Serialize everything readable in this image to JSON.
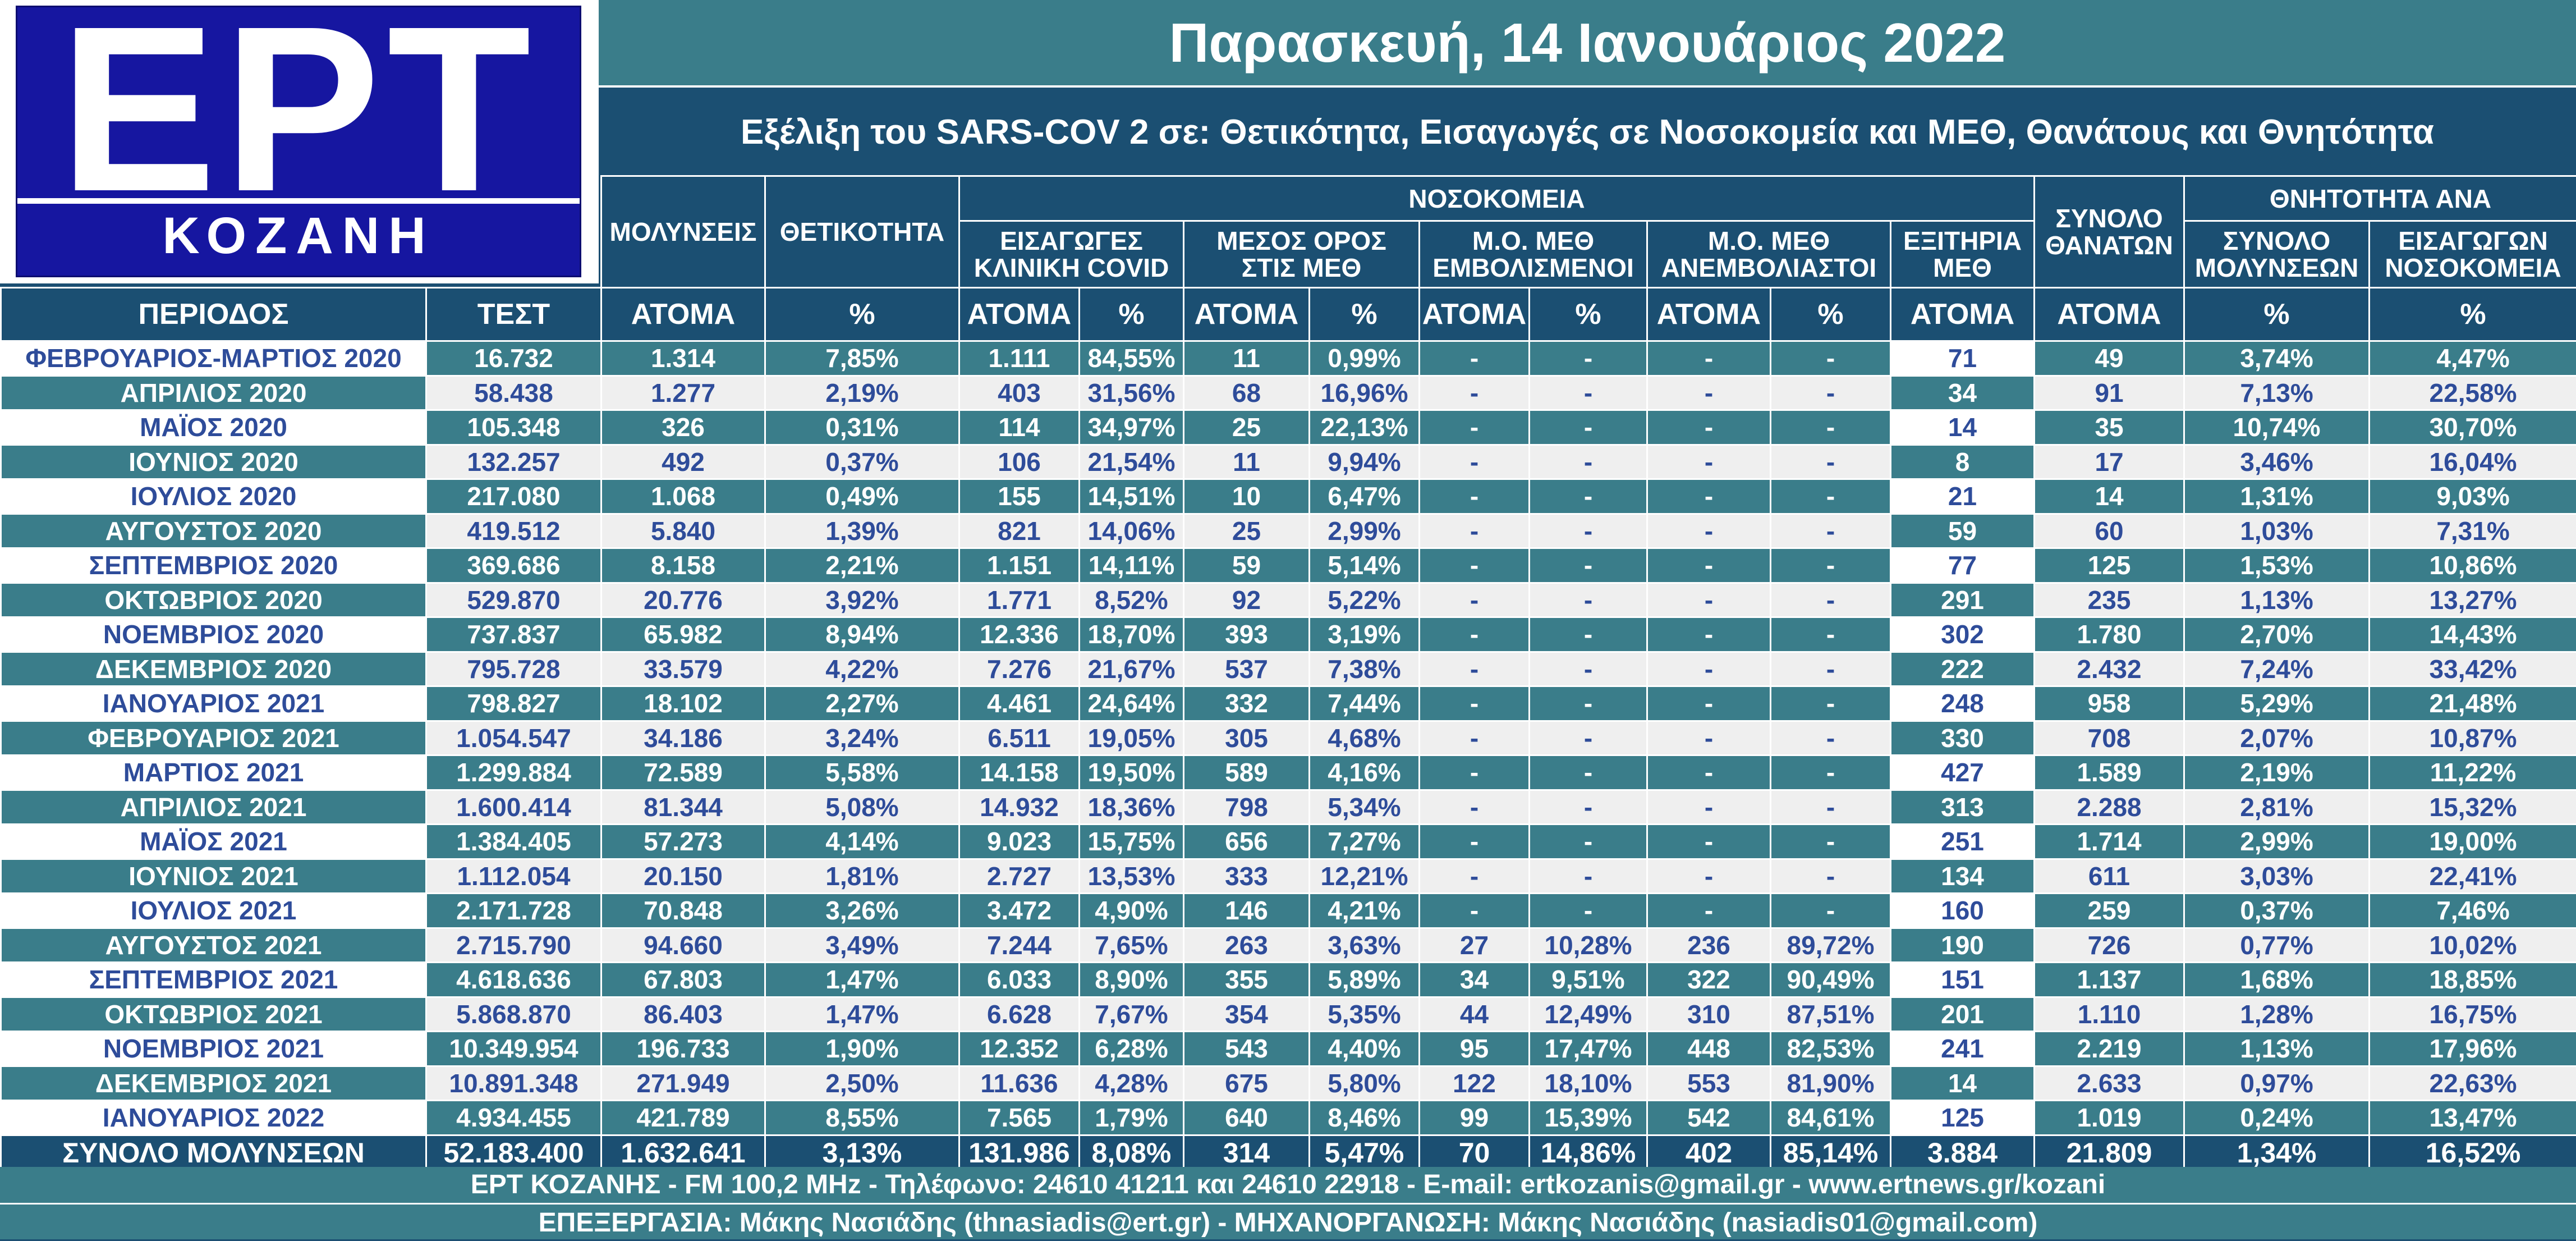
{
  "logo": {
    "brand": "ΕΡΤ",
    "city": "ΚΟΖΑΝΗ"
  },
  "header": {
    "date": "Παρασκευή, 14 Ιανουάριος 2022",
    "subtitle": "Εξέλιξη του SARS-COV 2 σε: Θετικότητα, Εισαγωγές σε Νοσοκομεία και ΜΕΘ, Θανάτους και Θνητότητα"
  },
  "columns": {
    "hospitals_group": "ΝΟΣΟΚΟΜΕΙΑ",
    "mortality_group": "ΘΝΗΤΟΤΗΤΑ ΑΝΑ",
    "infections": "ΜΟΛΥΝΣΕΙΣ",
    "positivity": "ΘΕΤΙΚΟΤΗΤΑ",
    "admissions_1": "ΕΙΣΑΓΩΓΕΣ",
    "admissions_2": "ΚΛΙΝΙΚΗ COVID",
    "icu_avg_1": "ΜΕΣΟΣ ΟΡΟΣ",
    "icu_avg_2": "ΣΤΙΣ ΜΕΘ",
    "icu_vacc_1": "Μ.Ο. ΜΕΘ",
    "icu_vacc_2": "ΕΜΒΟΛΙΣΜΕΝΟΙ",
    "icu_unvacc_1": "Μ.Ο. ΜΕΘ",
    "icu_unvacc_2": "ΑΝΕΜΒΟΛΙΑΣΤΟΙ",
    "icu_exits_1": "ΕΞΙΤΗΡΙΑ",
    "icu_exits_2": "ΜΕΘ",
    "deaths_1": "ΣΥΝΟΛΟ",
    "deaths_2": "ΘΑΝΑΤΩΝ",
    "mort_inf_1": "ΣΥΝΟΛΟ",
    "mort_inf_2": "ΜΟΛΥΝΣΕΩΝ",
    "mort_adm_1": "ΕΙΣΑΓΩΓΩΝ",
    "mort_adm_2": "ΝΟΣΟΚΟΜΕΙΑ"
  },
  "units": [
    "ΠΕΡΙΟΔΟΣ",
    "ΤΕΣΤ",
    "ΑΤΟΜΑ",
    "%",
    "ΑΤΟΜΑ",
    "%",
    "ΑΤΟΜΑ",
    "%",
    "ΑΤΟΜΑ",
    "%",
    "ΑΤΟΜΑ",
    "%",
    "ΑΤΟΜΑ",
    "ΑΤΟΜΑ",
    "%",
    "%"
  ],
  "rows": [
    [
      "ΦΕΒΡΟΥΑΡΙΟΣ-ΜΑΡΤΙΟΣ 2020",
      "16.732",
      "1.314",
      "7,85%",
      "1.111",
      "84,55%",
      "11",
      "0,99%",
      "-",
      "-",
      "-",
      "-",
      "71",
      "49",
      "3,74%",
      "4,47%"
    ],
    [
      "ΑΠΡΙΛΙΟΣ 2020",
      "58.438",
      "1.277",
      "2,19%",
      "403",
      "31,56%",
      "68",
      "16,96%",
      "-",
      "-",
      "-",
      "-",
      "34",
      "91",
      "7,13%",
      "22,58%"
    ],
    [
      "ΜΑΪΟΣ 2020",
      "105.348",
      "326",
      "0,31%",
      "114",
      "34,97%",
      "25",
      "22,13%",
      "-",
      "-",
      "-",
      "-",
      "14",
      "35",
      "10,74%",
      "30,70%"
    ],
    [
      "ΙΟΥΝΙΟΣ 2020",
      "132.257",
      "492",
      "0,37%",
      "106",
      "21,54%",
      "11",
      "9,94%",
      "-",
      "-",
      "-",
      "-",
      "8",
      "17",
      "3,46%",
      "16,04%"
    ],
    [
      "ΙΟΥΛΙΟΣ 2020",
      "217.080",
      "1.068",
      "0,49%",
      "155",
      "14,51%",
      "10",
      "6,47%",
      "-",
      "-",
      "-",
      "-",
      "21",
      "14",
      "1,31%",
      "9,03%"
    ],
    [
      "ΑΥΓΟΥΣΤΟΣ 2020",
      "419.512",
      "5.840",
      "1,39%",
      "821",
      "14,06%",
      "25",
      "2,99%",
      "-",
      "-",
      "-",
      "-",
      "59",
      "60",
      "1,03%",
      "7,31%"
    ],
    [
      "ΣΕΠΤΕΜΒΡΙΟΣ 2020",
      "369.686",
      "8.158",
      "2,21%",
      "1.151",
      "14,11%",
      "59",
      "5,14%",
      "-",
      "-",
      "-",
      "-",
      "77",
      "125",
      "1,53%",
      "10,86%"
    ],
    [
      "ΟΚΤΩΒΡΙΟΣ 2020",
      "529.870",
      "20.776",
      "3,92%",
      "1.771",
      "8,52%",
      "92",
      "5,22%",
      "-",
      "-",
      "-",
      "-",
      "291",
      "235",
      "1,13%",
      "13,27%"
    ],
    [
      "ΝΟΕΜΒΡΙΟΣ 2020",
      "737.837",
      "65.982",
      "8,94%",
      "12.336",
      "18,70%",
      "393",
      "3,19%",
      "-",
      "-",
      "-",
      "-",
      "302",
      "1.780",
      "2,70%",
      "14,43%"
    ],
    [
      "ΔΕΚΕΜΒΡΙΟΣ 2020",
      "795.728",
      "33.579",
      "4,22%",
      "7.276",
      "21,67%",
      "537",
      "7,38%",
      "-",
      "-",
      "-",
      "-",
      "222",
      "2.432",
      "7,24%",
      "33,42%"
    ],
    [
      "ΙΑΝΟΥΑΡΙΟΣ 2021",
      "798.827",
      "18.102",
      "2,27%",
      "4.461",
      "24,64%",
      "332",
      "7,44%",
      "-",
      "-",
      "-",
      "-",
      "248",
      "958",
      "5,29%",
      "21,48%"
    ],
    [
      "ΦΕΒΡΟΥΑΡΙΟΣ 2021",
      "1.054.547",
      "34.186",
      "3,24%",
      "6.511",
      "19,05%",
      "305",
      "4,68%",
      "-",
      "-",
      "-",
      "-",
      "330",
      "708",
      "2,07%",
      "10,87%"
    ],
    [
      "ΜΑΡΤΙΟΣ 2021",
      "1.299.884",
      "72.589",
      "5,58%",
      "14.158",
      "19,50%",
      "589",
      "4,16%",
      "-",
      "-",
      "-",
      "-",
      "427",
      "1.589",
      "2,19%",
      "11,22%"
    ],
    [
      "ΑΠΡΙΛΙΟΣ 2021",
      "1.600.414",
      "81.344",
      "5,08%",
      "14.932",
      "18,36%",
      "798",
      "5,34%",
      "-",
      "-",
      "-",
      "-",
      "313",
      "2.288",
      "2,81%",
      "15,32%"
    ],
    [
      "ΜΑΪΟΣ 2021",
      "1.384.405",
      "57.273",
      "4,14%",
      "9.023",
      "15,75%",
      "656",
      "7,27%",
      "-",
      "-",
      "-",
      "-",
      "251",
      "1.714",
      "2,99%",
      "19,00%"
    ],
    [
      "ΙΟΥΝΙΟΣ 2021",
      "1.112.054",
      "20.150",
      "1,81%",
      "2.727",
      "13,53%",
      "333",
      "12,21%",
      "-",
      "-",
      "-",
      "-",
      "134",
      "611",
      "3,03%",
      "22,41%"
    ],
    [
      "ΙΟΥΛΙΟΣ 2021",
      "2.171.728",
      "70.848",
      "3,26%",
      "3.472",
      "4,90%",
      "146",
      "4,21%",
      "-",
      "-",
      "-",
      "-",
      "160",
      "259",
      "0,37%",
      "7,46%"
    ],
    [
      "ΑΥΓΟΥΣΤΟΣ 2021",
      "2.715.790",
      "94.660",
      "3,49%",
      "7.244",
      "7,65%",
      "263",
      "3,63%",
      "27",
      "10,28%",
      "236",
      "89,72%",
      "190",
      "726",
      "0,77%",
      "10,02%"
    ],
    [
      "ΣΕΠΤΕΜΒΡΙΟΣ 2021",
      "4.618.636",
      "67.803",
      "1,47%",
      "6.033",
      "8,90%",
      "355",
      "5,89%",
      "34",
      "9,51%",
      "322",
      "90,49%",
      "151",
      "1.137",
      "1,68%",
      "18,85%"
    ],
    [
      "ΟΚΤΩΒΡΙΟΣ 2021",
      "5.868.870",
      "86.403",
      "1,47%",
      "6.628",
      "7,67%",
      "354",
      "5,35%",
      "44",
      "12,49%",
      "310",
      "87,51%",
      "201",
      "1.110",
      "1,28%",
      "16,75%"
    ],
    [
      "ΝΟΕΜΒΡΙΟΣ 2021",
      "10.349.954",
      "196.733",
      "1,90%",
      "12.352",
      "6,28%",
      "543",
      "4,40%",
      "95",
      "17,47%",
      "448",
      "82,53%",
      "241",
      "2.219",
      "1,13%",
      "17,96%"
    ],
    [
      "ΔΕΚΕΜΒΡΙΟΣ 2021",
      "10.891.348",
      "271.949",
      "2,50%",
      "11.636",
      "4,28%",
      "675",
      "5,80%",
      "122",
      "18,10%",
      "553",
      "81,90%",
      "14",
      "2.633",
      "0,97%",
      "22,63%"
    ],
    [
      "ΙΑΝΟΥΑΡΙΟΣ 2022",
      "4.934.455",
      "421.789",
      "8,55%",
      "7.565",
      "1,79%",
      "640",
      "8,46%",
      "99",
      "15,39%",
      "542",
      "84,61%",
      "125",
      "1.019",
      "0,24%",
      "13,47%"
    ]
  ],
  "total": [
    "ΣΥΝΟΛΟ ΜΟΛΥΝΣΕΩΝ",
    "52.183.400",
    "1.632.641",
    "3,13%",
    "131.986",
    "8,08%",
    "314",
    "5,47%",
    "70",
    "14,86%",
    "402",
    "85,14%",
    "3.884",
    "21.809",
    "1,34%",
    "16,52%"
  ],
  "footer": {
    "line1": "ΕΡΤ ΚΟΖΑΝΗΣ - FM 100,2 MHz - Τηλέφωνο:  24610 41211 και 24610 22918 - E-mail: ertkozanis@gmail.gr - www.ertnews.gr/kozani",
    "line2": "ΕΠΕΞΕΡΓΑΣΙΑ: Μάκης Νασιάδης (thnasiadis@ert.gr) - ΜΗΧΑΝΟΡΓΑΝΩΣΗ: Μάκης Νασιάδης (nasiadis01@gmail.com)"
  }
}
